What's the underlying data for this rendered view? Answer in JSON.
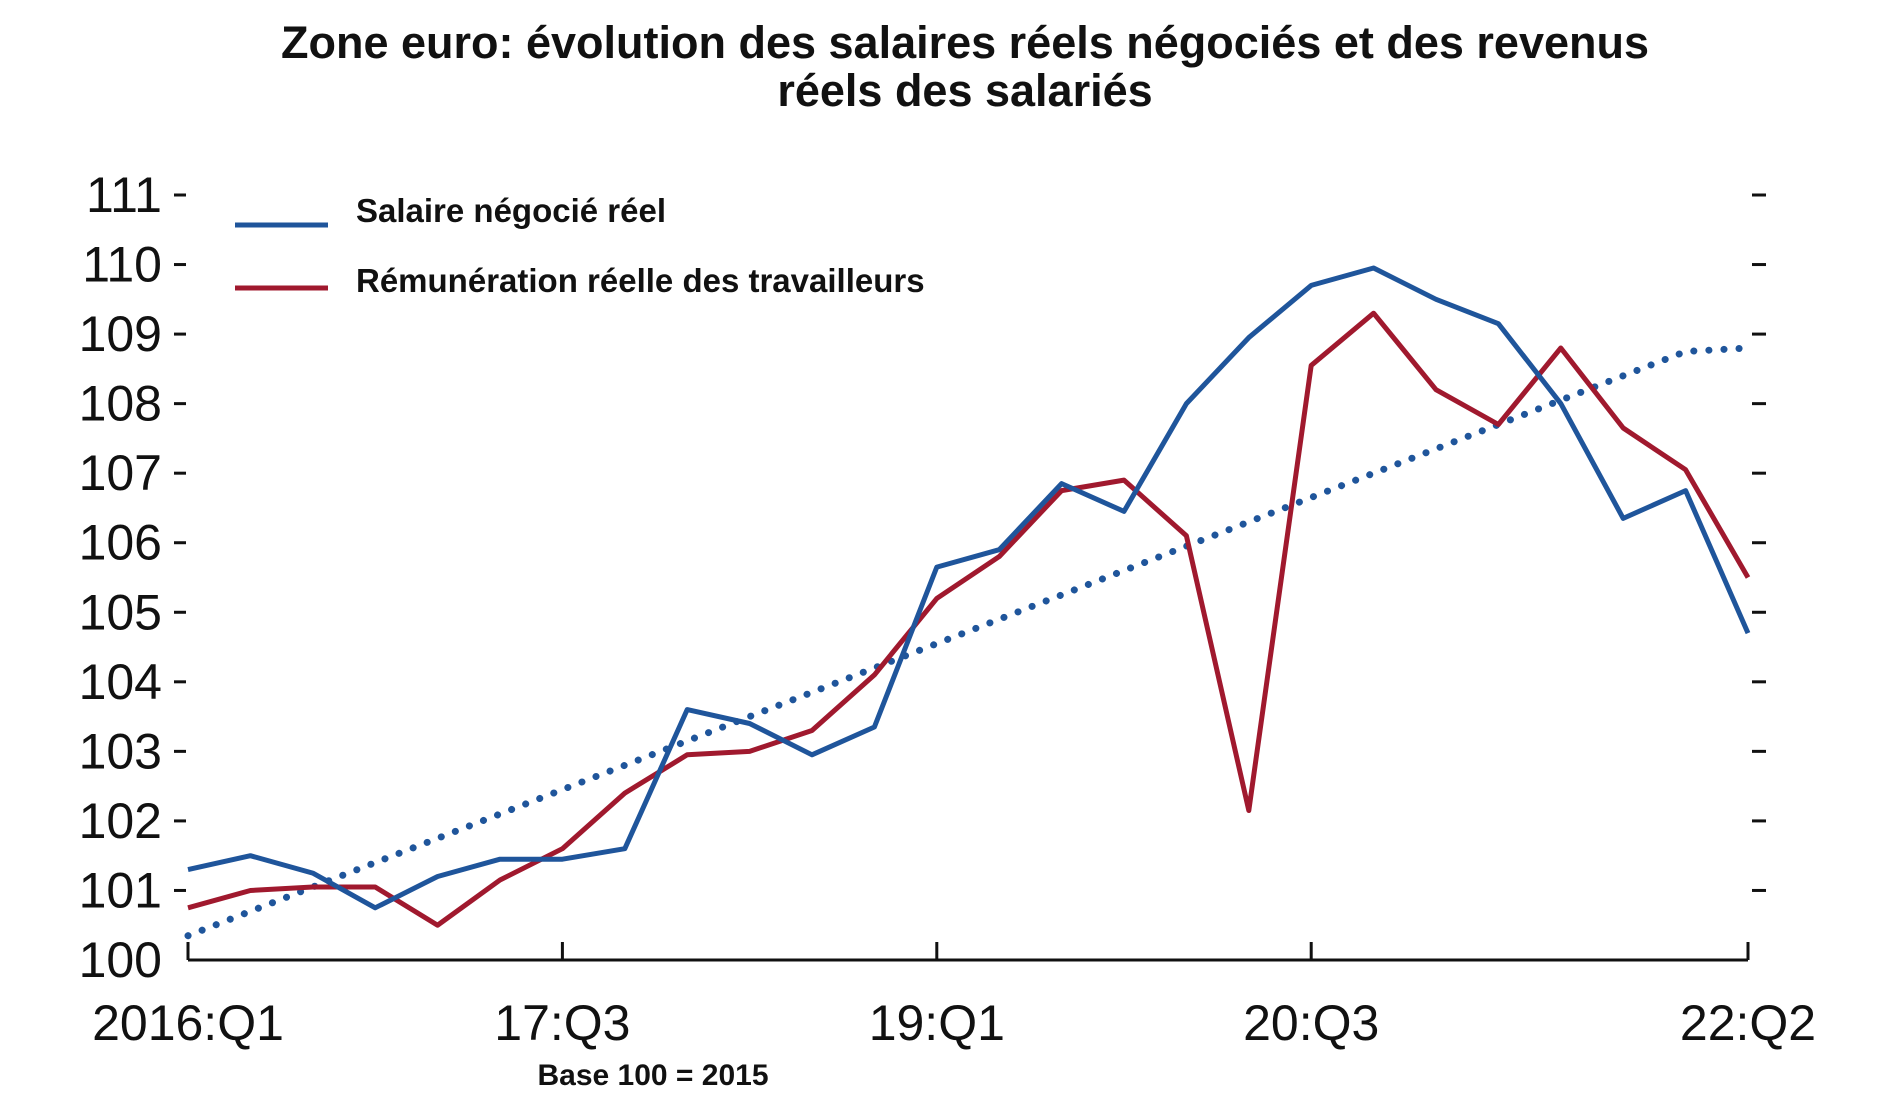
{
  "chart_data": {
    "type": "line",
    "title": "Zone euro: évolution des salaires réels négociés et des revenus",
    "title_line2": "réels des salariés",
    "xlabel": "",
    "ylabel": "",
    "note": "Base 100 = 2015",
    "ylim": [
      100,
      111
    ],
    "yticks": [
      "100",
      "101",
      "102",
      "103",
      "104",
      "105",
      "106",
      "107",
      "108",
      "109",
      "110",
      "111"
    ],
    "grid": false,
    "legend_position": "top-left",
    "x": [
      "2016:Q1",
      "2016:Q2",
      "2016:Q3",
      "2016:Q4",
      "2017:Q1",
      "2017:Q2",
      "2017:Q3",
      "2017:Q4",
      "2018:Q1",
      "2018:Q2",
      "2018:Q3",
      "2018:Q4",
      "2019:Q1",
      "2019:Q2",
      "2019:Q3",
      "2019:Q4",
      "2020:Q1",
      "2020:Q2",
      "2020:Q3",
      "2020:Q4",
      "2021:Q1",
      "2021:Q2",
      "2021:Q3",
      "2021:Q4",
      "2022:Q1",
      "2022:Q2"
    ],
    "xtick_labels": [
      {
        "index": 0,
        "label": "2016:Q1"
      },
      {
        "index": 6,
        "label": "17:Q3"
      },
      {
        "index": 12,
        "label": "19:Q1"
      },
      {
        "index": 18,
        "label": "20:Q3"
      },
      {
        "index": 25,
        "label": "22:Q2"
      }
    ],
    "series": [
      {
        "name": "Salaire négocié réel",
        "color": "#1f559b",
        "style": "solid",
        "values": [
          101.3,
          101.5,
          101.25,
          100.75,
          101.2,
          101.45,
          101.45,
          101.6,
          103.6,
          103.4,
          102.95,
          103.35,
          105.65,
          105.9,
          106.85,
          106.45,
          108.0,
          108.95,
          109.7,
          109.95,
          109.5,
          109.15,
          108.0,
          106.35,
          106.75,
          104.7
        ]
      },
      {
        "name": "Rémunération réelle des travailleurs",
        "color": "#a0192e",
        "style": "solid",
        "values": [
          100.75,
          101.0,
          101.05,
          101.05,
          100.5,
          101.15,
          101.6,
          102.4,
          102.95,
          103.0,
          103.3,
          104.1,
          105.2,
          105.8,
          106.75,
          106.9,
          106.1,
          102.15,
          108.55,
          109.3,
          108.2,
          107.7,
          108.8,
          107.65,
          107.05,
          105.5
        ]
      },
      {
        "name": "",
        "color": "#1f559b",
        "style": "dotted",
        "values": [
          100.35,
          100.7,
          101.05,
          101.4,
          101.75,
          102.1,
          102.45,
          102.8,
          103.15,
          103.5,
          103.85,
          104.2,
          104.55,
          104.9,
          105.25,
          105.6,
          105.95,
          106.3,
          106.65,
          107.0,
          107.35,
          107.7,
          108.05,
          108.4,
          108.75,
          108.8
        ]
      }
    ]
  }
}
